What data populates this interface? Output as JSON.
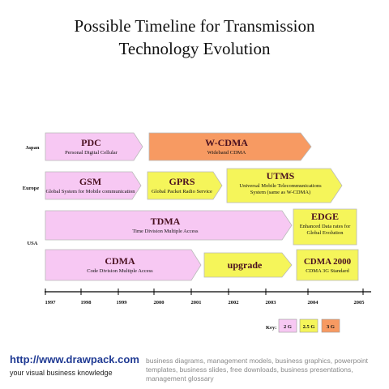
{
  "title": {
    "line1": "Possible Timeline for Transmission",
    "line2": "Technology Evolution"
  },
  "regions": [
    "Japan",
    "Europe",
    "USA"
  ],
  "years": [
    "1997",
    "1998",
    "1999",
    "2000",
    "2001",
    "2002",
    "2003",
    "2004",
    "2005"
  ],
  "key": {
    "label": "Key:",
    "items": [
      {
        "text": "2 G",
        "color": "#f7c8f3"
      },
      {
        "text": "2.5 G",
        "color": "#f5f55a"
      },
      {
        "text": "3 G",
        "color": "#f79a62"
      }
    ]
  },
  "colors": {
    "2G": "#f7c8f3",
    "2.5G": "#f5f55a",
    "3G": "#f79a62"
  },
  "technologies": [
    {
      "name": "PDC",
      "desc": "Personal Digital Cellular",
      "gen": "2G"
    },
    {
      "name": "W-CDMA",
      "desc": "Wideband CDMA",
      "gen": "3G"
    },
    {
      "name": "GSM",
      "desc": "Global System for Mobile communication",
      "gen": "2G"
    },
    {
      "name": "GPRS",
      "desc": "Global Packet Radio Service",
      "gen": "2.5G"
    },
    {
      "name": "UTMS",
      "desc": "Universal Mobile Telecommunications System (same as W-CDMA)",
      "gen": "2.5G"
    },
    {
      "name": "TDMA",
      "desc": "Time Division Multiple Access",
      "gen": "2G"
    },
    {
      "name": "EDGE",
      "desc": "Enhanced Data rates for Global Evolution",
      "gen": "2.5G"
    },
    {
      "name": "CDMA",
      "desc": "Code Division Multiple Access",
      "gen": "2G"
    },
    {
      "name": "upgrade",
      "desc": "",
      "gen": "2.5G"
    },
    {
      "name": "CDMA 2000",
      "desc": "CDMA 3G Standard",
      "gen": "2.5G"
    }
  ],
  "footer": {
    "url": "http://www.drawpack.com",
    "tagline": "your visual business knowledge",
    "description": "business diagrams, management models, business graphics, powerpoint templates, business slides, free downloads, business presentations, management glossary"
  }
}
